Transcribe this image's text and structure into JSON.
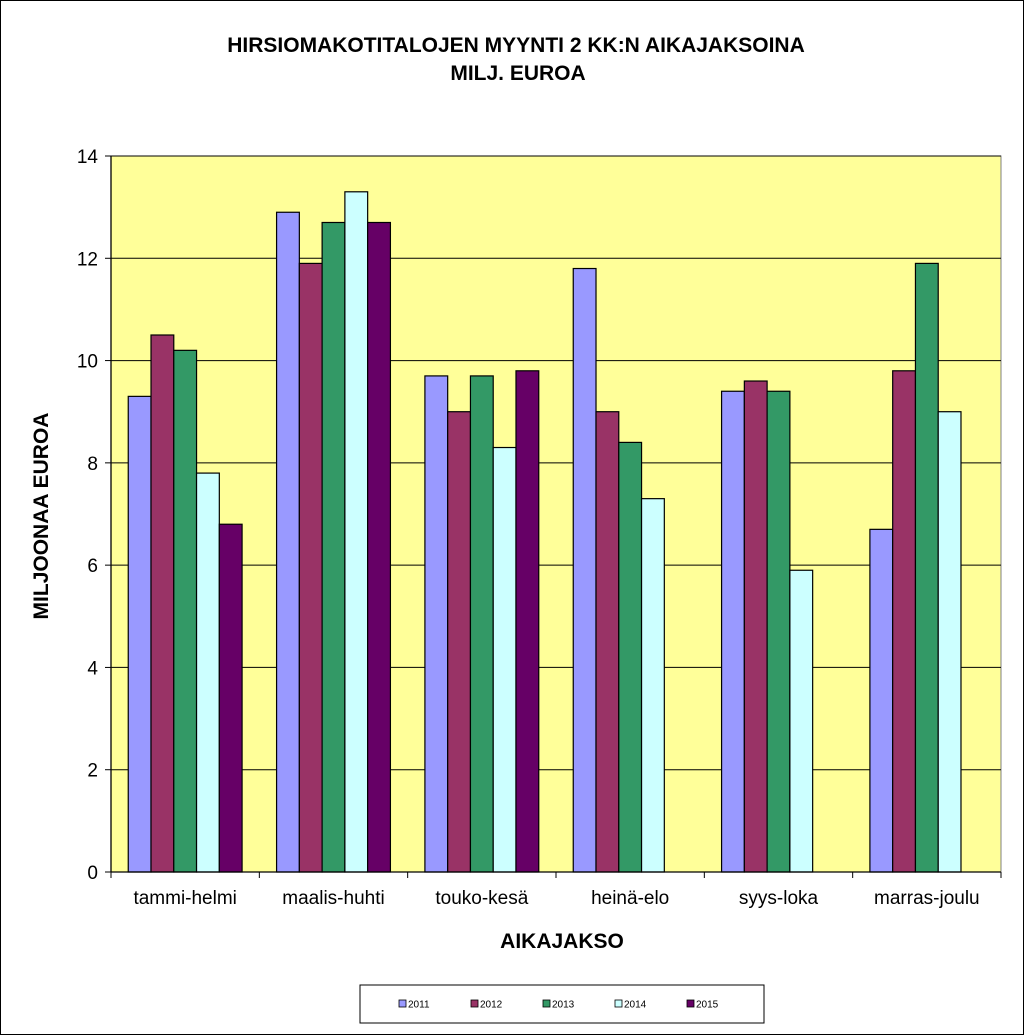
{
  "chart_data": {
    "type": "bar",
    "title": "HIRSIOMAKOTITALOJEN MYYNTI 2 KK:N AIKAJAKSOINA",
    "subtitle": "MILJ. EUROA",
    "xlabel": "AIKAJAKSO",
    "ylabel": "MILJOONAA EUROA",
    "ylim": [
      0,
      14
    ],
    "yticks": [
      0,
      2,
      4,
      6,
      8,
      10,
      12,
      14
    ],
    "grid": true,
    "legend_position": "bottom",
    "plot_background": "#ffff99",
    "categories": [
      "tammi-helmi",
      "maalis-huhti",
      "touko-kesä",
      "heinä-elo",
      "syys-loka",
      "marras-joulu"
    ],
    "series": [
      {
        "name": "2011",
        "color": "#9999ff",
        "values": [
          9.3,
          12.9,
          9.7,
          11.8,
          9.4,
          6.7
        ]
      },
      {
        "name": "2012",
        "color": "#993366",
        "values": [
          10.5,
          11.9,
          9.0,
          9.0,
          9.6,
          9.8
        ]
      },
      {
        "name": "2013",
        "color": "#339966",
        "values": [
          10.2,
          12.7,
          9.7,
          8.4,
          9.4,
          11.9
        ]
      },
      {
        "name": "2014",
        "color": "#ccffff",
        "values": [
          7.8,
          13.3,
          8.3,
          7.3,
          5.9,
          9.0
        ]
      },
      {
        "name": "2015",
        "color": "#660066",
        "values": [
          6.8,
          12.7,
          9.8,
          null,
          null,
          null
        ]
      }
    ]
  }
}
